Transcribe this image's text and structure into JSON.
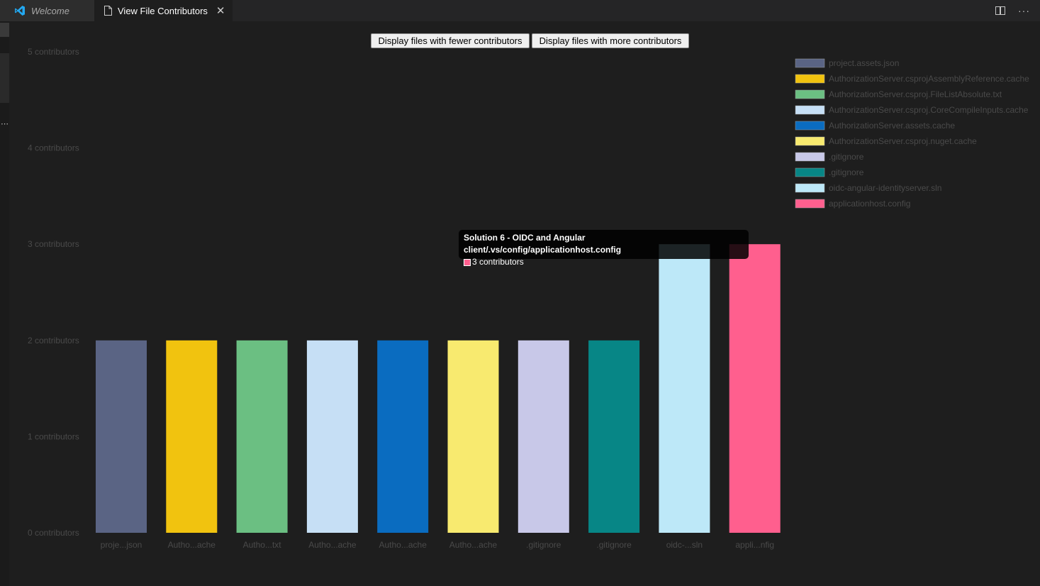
{
  "tabs": [
    {
      "label": "Welcome",
      "icon": "vscode-logo-icon"
    },
    {
      "label": "View File Contributors",
      "icon": "file-icon",
      "close": "✕"
    }
  ],
  "toolbar": {
    "fewer_label": "Display files with fewer contributors",
    "more_label": "Display files with more contributors"
  },
  "tooltip": {
    "title": "Solution 6 - OIDC and Angular client/.vs/config/applicationhost.config",
    "value_label": "3 contributors",
    "color": "#ff5f8e"
  },
  "chart_data": {
    "type": "bar",
    "title": "",
    "ylim": [
      0,
      5
    ],
    "yticks": [
      "0 contributors",
      "1 contributors",
      "2 contributors",
      "3 contributors",
      "4 contributors",
      "5 contributors"
    ],
    "categories": [
      "proje...json",
      "Autho...ache",
      "Autho...txt",
      "Autho...ache",
      "Autho...ache",
      "Autho...ache",
      ".gitignore",
      ".gitignore",
      "oidc-...sln",
      "appli...nfig"
    ],
    "values": [
      2,
      2,
      2,
      2,
      2,
      2,
      2,
      2,
      3,
      3
    ],
    "colors": [
      "#5a6484",
      "#f1c30f",
      "#6bbf82",
      "#c6dff5",
      "#0a6cc0",
      "#f8ea6f",
      "#c8c8e8",
      "#078686",
      "#bde8f8",
      "#ff5f8e"
    ],
    "legend_position": "top-right",
    "legend": [
      "project.assets.json",
      "AuthorizationServer.csprojAssemblyReference.cache",
      "AuthorizationServer.csproj.FileListAbsolute.txt",
      "AuthorizationServer.csproj.CoreCompileInputs.cache",
      "AuthorizationServer.assets.cache",
      "AuthorizationServer.csproj.nuget.cache",
      ".gitignore",
      ".gitignore",
      "oidc-angular-identityserver.sln",
      "applicationhost.config"
    ]
  }
}
